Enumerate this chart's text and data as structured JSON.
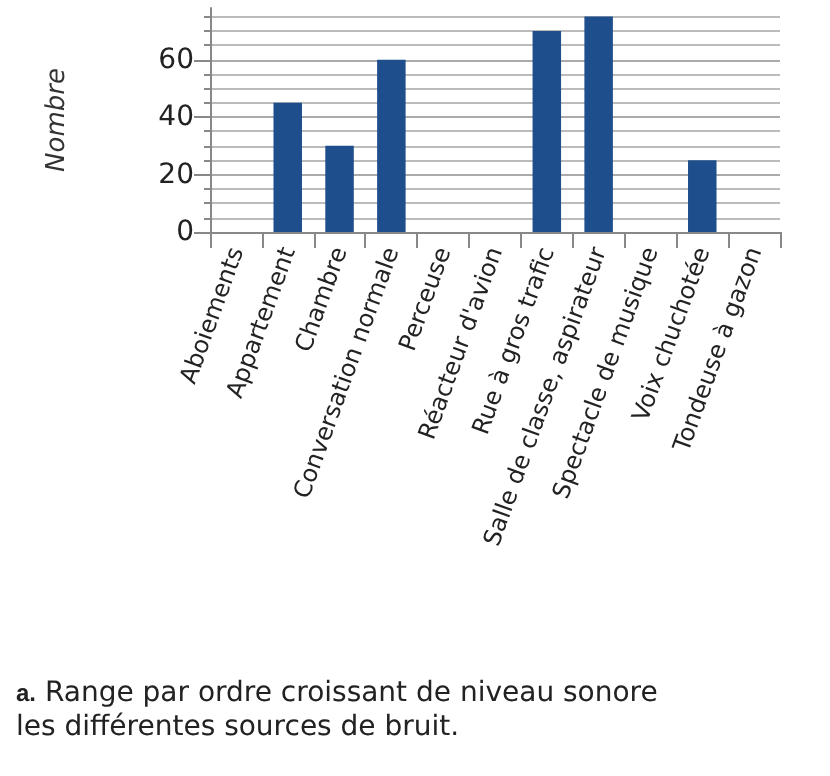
{
  "chart_data": {
    "type": "bar",
    "ylabel": "Nombre",
    "categories": [
      "Aboiements",
      "Appartement",
      "Chambre",
      "Conversation normale",
      "Perceuse",
      "Réacteur d'avion",
      "Rue à gros trafic",
      "Salle de classe, aspirateur",
      "Spectacle de musique",
      "Voix chuchotée",
      "Tondeuse à gazon"
    ],
    "values": [
      null,
      45,
      30,
      60,
      null,
      null,
      70,
      75,
      null,
      25,
      null
    ],
    "color": "#1f4e8c",
    "ylim": [
      0,
      78
    ],
    "yticks": [
      0,
      20,
      40,
      60
    ],
    "grid": true,
    "annotations": [
      "a. Range par ordre croissant de niveau sonore les différentes sources de bruit."
    ]
  }
}
